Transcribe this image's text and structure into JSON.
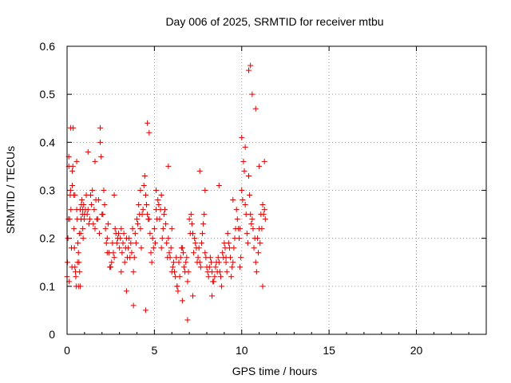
{
  "chart_data": {
    "type": "scatter",
    "title": "Day 006 of 2025, SRMTID for receiver mtbu",
    "xlabel": "GPS time / hours",
    "ylabel": "SRMTID / TECUs",
    "xlim": [
      0,
      24
    ],
    "ylim": [
      0,
      0.6
    ],
    "xticks": [
      0,
      5,
      10,
      15,
      20
    ],
    "xtick_labels": [
      "0",
      "5",
      "10",
      "15",
      "20"
    ],
    "yticks": [
      0,
      0.1,
      0.2,
      0.3,
      0.4,
      0.5,
      0.6
    ],
    "ytick_labels": [
      "0",
      "0.1",
      "0.2",
      "0.3",
      "0.4",
      "0.5",
      "0.6"
    ],
    "grid": true,
    "marker": "+",
    "color": "#e00000",
    "series": [
      {
        "name": "SRMTID",
        "x": [
          0.0,
          0.05,
          0.1,
          0.15,
          0.2,
          0.25,
          0.3,
          0.35,
          0.4,
          0.45,
          0.5,
          0.55,
          0.6,
          0.65,
          0.7,
          0.75,
          0.8,
          0.85,
          0.9,
          0.95,
          1.0,
          1.1,
          1.2,
          1.3,
          1.4,
          1.5,
          1.6,
          1.7,
          1.8,
          1.9,
          2.0,
          2.1,
          2.2,
          2.3,
          2.4,
          2.5,
          2.6,
          2.7,
          2.8,
          2.9,
          3.0,
          3.1,
          3.2,
          3.3,
          3.4,
          3.5,
          3.6,
          3.7,
          3.8,
          3.9,
          4.0,
          4.1,
          4.2,
          4.3,
          4.4,
          4.5,
          4.6,
          4.7,
          4.8,
          4.9,
          5.0,
          5.1,
          5.2,
          5.3,
          5.4,
          5.5,
          5.6,
          5.7,
          5.8,
          5.9,
          6.0,
          6.1,
          6.2,
          6.3,
          6.4,
          6.5,
          6.6,
          6.7,
          6.8,
          6.9,
          7.0,
          7.1,
          7.2,
          7.3,
          7.4,
          7.5,
          7.6,
          7.7,
          7.8,
          7.9,
          8.0,
          8.1,
          8.2,
          8.3,
          8.4,
          8.5,
          8.6,
          8.7,
          8.8,
          8.9,
          9.0,
          9.1,
          9.2,
          9.3,
          9.4,
          9.5,
          9.6,
          9.7,
          9.8,
          9.9,
          10.0,
          10.1,
          10.2,
          10.3,
          10.4,
          10.5,
          10.6,
          10.7,
          10.8,
          10.9,
          11.0,
          11.1,
          11.2,
          11.3,
          0.02,
          0.08,
          0.12,
          0.18,
          0.22,
          0.28,
          0.33,
          0.38,
          0.42,
          0.48,
          0.52,
          0.58,
          0.62,
          0.68,
          0.72,
          0.78,
          0.82,
          0.88,
          0.92,
          0.98,
          1.05,
          1.15,
          1.25,
          1.35,
          1.45,
          1.55,
          1.65,
          1.75,
          1.85,
          1.95,
          2.05,
          2.15,
          2.25,
          2.35,
          2.45,
          2.55,
          2.65,
          2.75,
          2.85,
          2.95,
          3.05,
          3.15,
          3.25,
          3.35,
          3.45,
          3.55,
          3.65,
          3.75,
          3.85,
          3.95,
          4.05,
          4.15,
          4.25,
          4.35,
          4.45,
          4.55,
          4.65,
          4.75,
          4.85,
          4.95,
          5.05,
          5.15,
          5.25,
          5.35,
          5.45,
          5.55,
          5.65,
          5.75,
          5.85,
          5.95,
          6.05,
          6.15,
          6.25,
          6.35,
          6.45,
          6.55,
          6.65,
          6.75,
          6.85,
          6.95,
          7.05,
          7.15,
          7.25,
          7.35,
          7.45,
          7.55,
          7.65,
          7.75,
          7.85,
          7.95,
          8.05,
          8.15,
          8.25,
          8.35,
          8.45,
          8.55,
          8.65,
          8.75,
          8.85,
          8.95,
          9.05,
          9.15,
          9.25,
          9.35,
          9.45,
          9.55,
          9.65,
          9.75,
          9.85,
          9.95,
          10.05,
          10.15,
          10.25,
          10.35,
          10.45,
          10.55,
          10.65,
          10.75,
          10.85,
          10.95,
          11.05,
          11.15,
          11.25,
          11.35,
          0.1,
          0.2,
          0.3,
          0.45,
          0.55,
          0.65,
          0.75,
          0.9,
          1.2,
          1.6,
          1.9,
          2.3,
          2.7,
          3.1,
          3.4,
          3.8,
          4.2,
          4.5,
          4.6,
          4.7,
          5.1,
          5.4,
          5.8,
          6.0,
          6.3,
          6.6,
          6.9,
          7.2,
          7.6,
          7.9,
          8.3,
          8.7,
          9.1,
          9.5,
          9.9,
          10.0,
          10.2,
          10.4,
          10.5,
          10.6,
          10.8,
          11.0,
          11.2,
          11.3
        ],
        "y": [
          0.12,
          0.2,
          0.37,
          0.24,
          0.3,
          0.18,
          0.34,
          0.43,
          0.22,
          0.14,
          0.12,
          0.26,
          0.15,
          0.1,
          0.21,
          0.26,
          0.24,
          0.28,
          0.22,
          0.27,
          0.25,
          0.29,
          0.26,
          0.24,
          0.27,
          0.23,
          0.22,
          0.24,
          0.28,
          0.4,
          0.25,
          0.3,
          0.22,
          0.2,
          0.17,
          0.14,
          0.19,
          0.16,
          0.21,
          0.2,
          0.18,
          0.22,
          0.19,
          0.15,
          0.2,
          0.18,
          0.16,
          0.17,
          0.13,
          0.21,
          0.24,
          0.27,
          0.22,
          0.25,
          0.31,
          0.29,
          0.25,
          0.24,
          0.17,
          0.2,
          0.22,
          0.26,
          0.28,
          0.24,
          0.18,
          0.22,
          0.26,
          0.19,
          0.2,
          0.16,
          0.13,
          0.15,
          0.12,
          0.1,
          0.15,
          0.16,
          0.18,
          0.14,
          0.15,
          0.11,
          0.24,
          0.25,
          0.21,
          0.2,
          0.18,
          0.16,
          0.15,
          0.19,
          0.23,
          0.17,
          0.14,
          0.12,
          0.16,
          0.13,
          0.11,
          0.14,
          0.13,
          0.15,
          0.12,
          0.17,
          0.19,
          0.15,
          0.21,
          0.18,
          0.12,
          0.15,
          0.2,
          0.26,
          0.22,
          0.14,
          0.3,
          0.36,
          0.27,
          0.21,
          0.33,
          0.25,
          0.24,
          0.18,
          0.15,
          0.2,
          0.22,
          0.25,
          0.27,
          0.26,
          0.15,
          0.24,
          0.11,
          0.29,
          0.26,
          0.14,
          0.35,
          0.29,
          0.18,
          0.13,
          0.1,
          0.24,
          0.19,
          0.15,
          0.13,
          0.21,
          0.27,
          0.25,
          0.2,
          0.24,
          0.26,
          0.25,
          0.23,
          0.29,
          0.3,
          0.26,
          0.28,
          0.24,
          0.21,
          0.37,
          0.25,
          0.27,
          0.19,
          0.23,
          0.14,
          0.15,
          0.17,
          0.22,
          0.19,
          0.21,
          0.2,
          0.17,
          0.21,
          0.18,
          0.16,
          0.2,
          0.19,
          0.22,
          0.16,
          0.19,
          0.23,
          0.25,
          0.18,
          0.26,
          0.33,
          0.27,
          0.24,
          0.21,
          0.15,
          0.18,
          0.19,
          0.24,
          0.27,
          0.26,
          0.2,
          0.25,
          0.23,
          0.16,
          0.17,
          0.18,
          0.14,
          0.13,
          0.16,
          0.09,
          0.12,
          0.18,
          0.17,
          0.13,
          0.16,
          0.13,
          0.21,
          0.23,
          0.17,
          0.19,
          0.15,
          0.18,
          0.14,
          0.21,
          0.25,
          0.16,
          0.13,
          0.14,
          0.15,
          0.11,
          0.12,
          0.15,
          0.16,
          0.13,
          0.1,
          0.16,
          0.18,
          0.13,
          0.19,
          0.16,
          0.14,
          0.18,
          0.22,
          0.24,
          0.2,
          0.16,
          0.28,
          0.34,
          0.25,
          0.19,
          0.29,
          0.23,
          0.22,
          0.2,
          0.13,
          0.17,
          0.19,
          0.22,
          0.25,
          0.24,
          0.35,
          0.43,
          0.31,
          0.29,
          0.36,
          0.17,
          0.1,
          0.26,
          0.38,
          0.36,
          0.43,
          0.17,
          0.29,
          0.13,
          0.09,
          0.06,
          0.3,
          0.05,
          0.44,
          0.42,
          0.3,
          0.29,
          0.35,
          0.22,
          0.1,
          0.07,
          0.03,
          0.08,
          0.34,
          0.3,
          0.08,
          0.31,
          0.16,
          0.28,
          0.22,
          0.41,
          0.39,
          0.55,
          0.56,
          0.5,
          0.47,
          0.35,
          0.1,
          0.36
        ]
      }
    ]
  }
}
